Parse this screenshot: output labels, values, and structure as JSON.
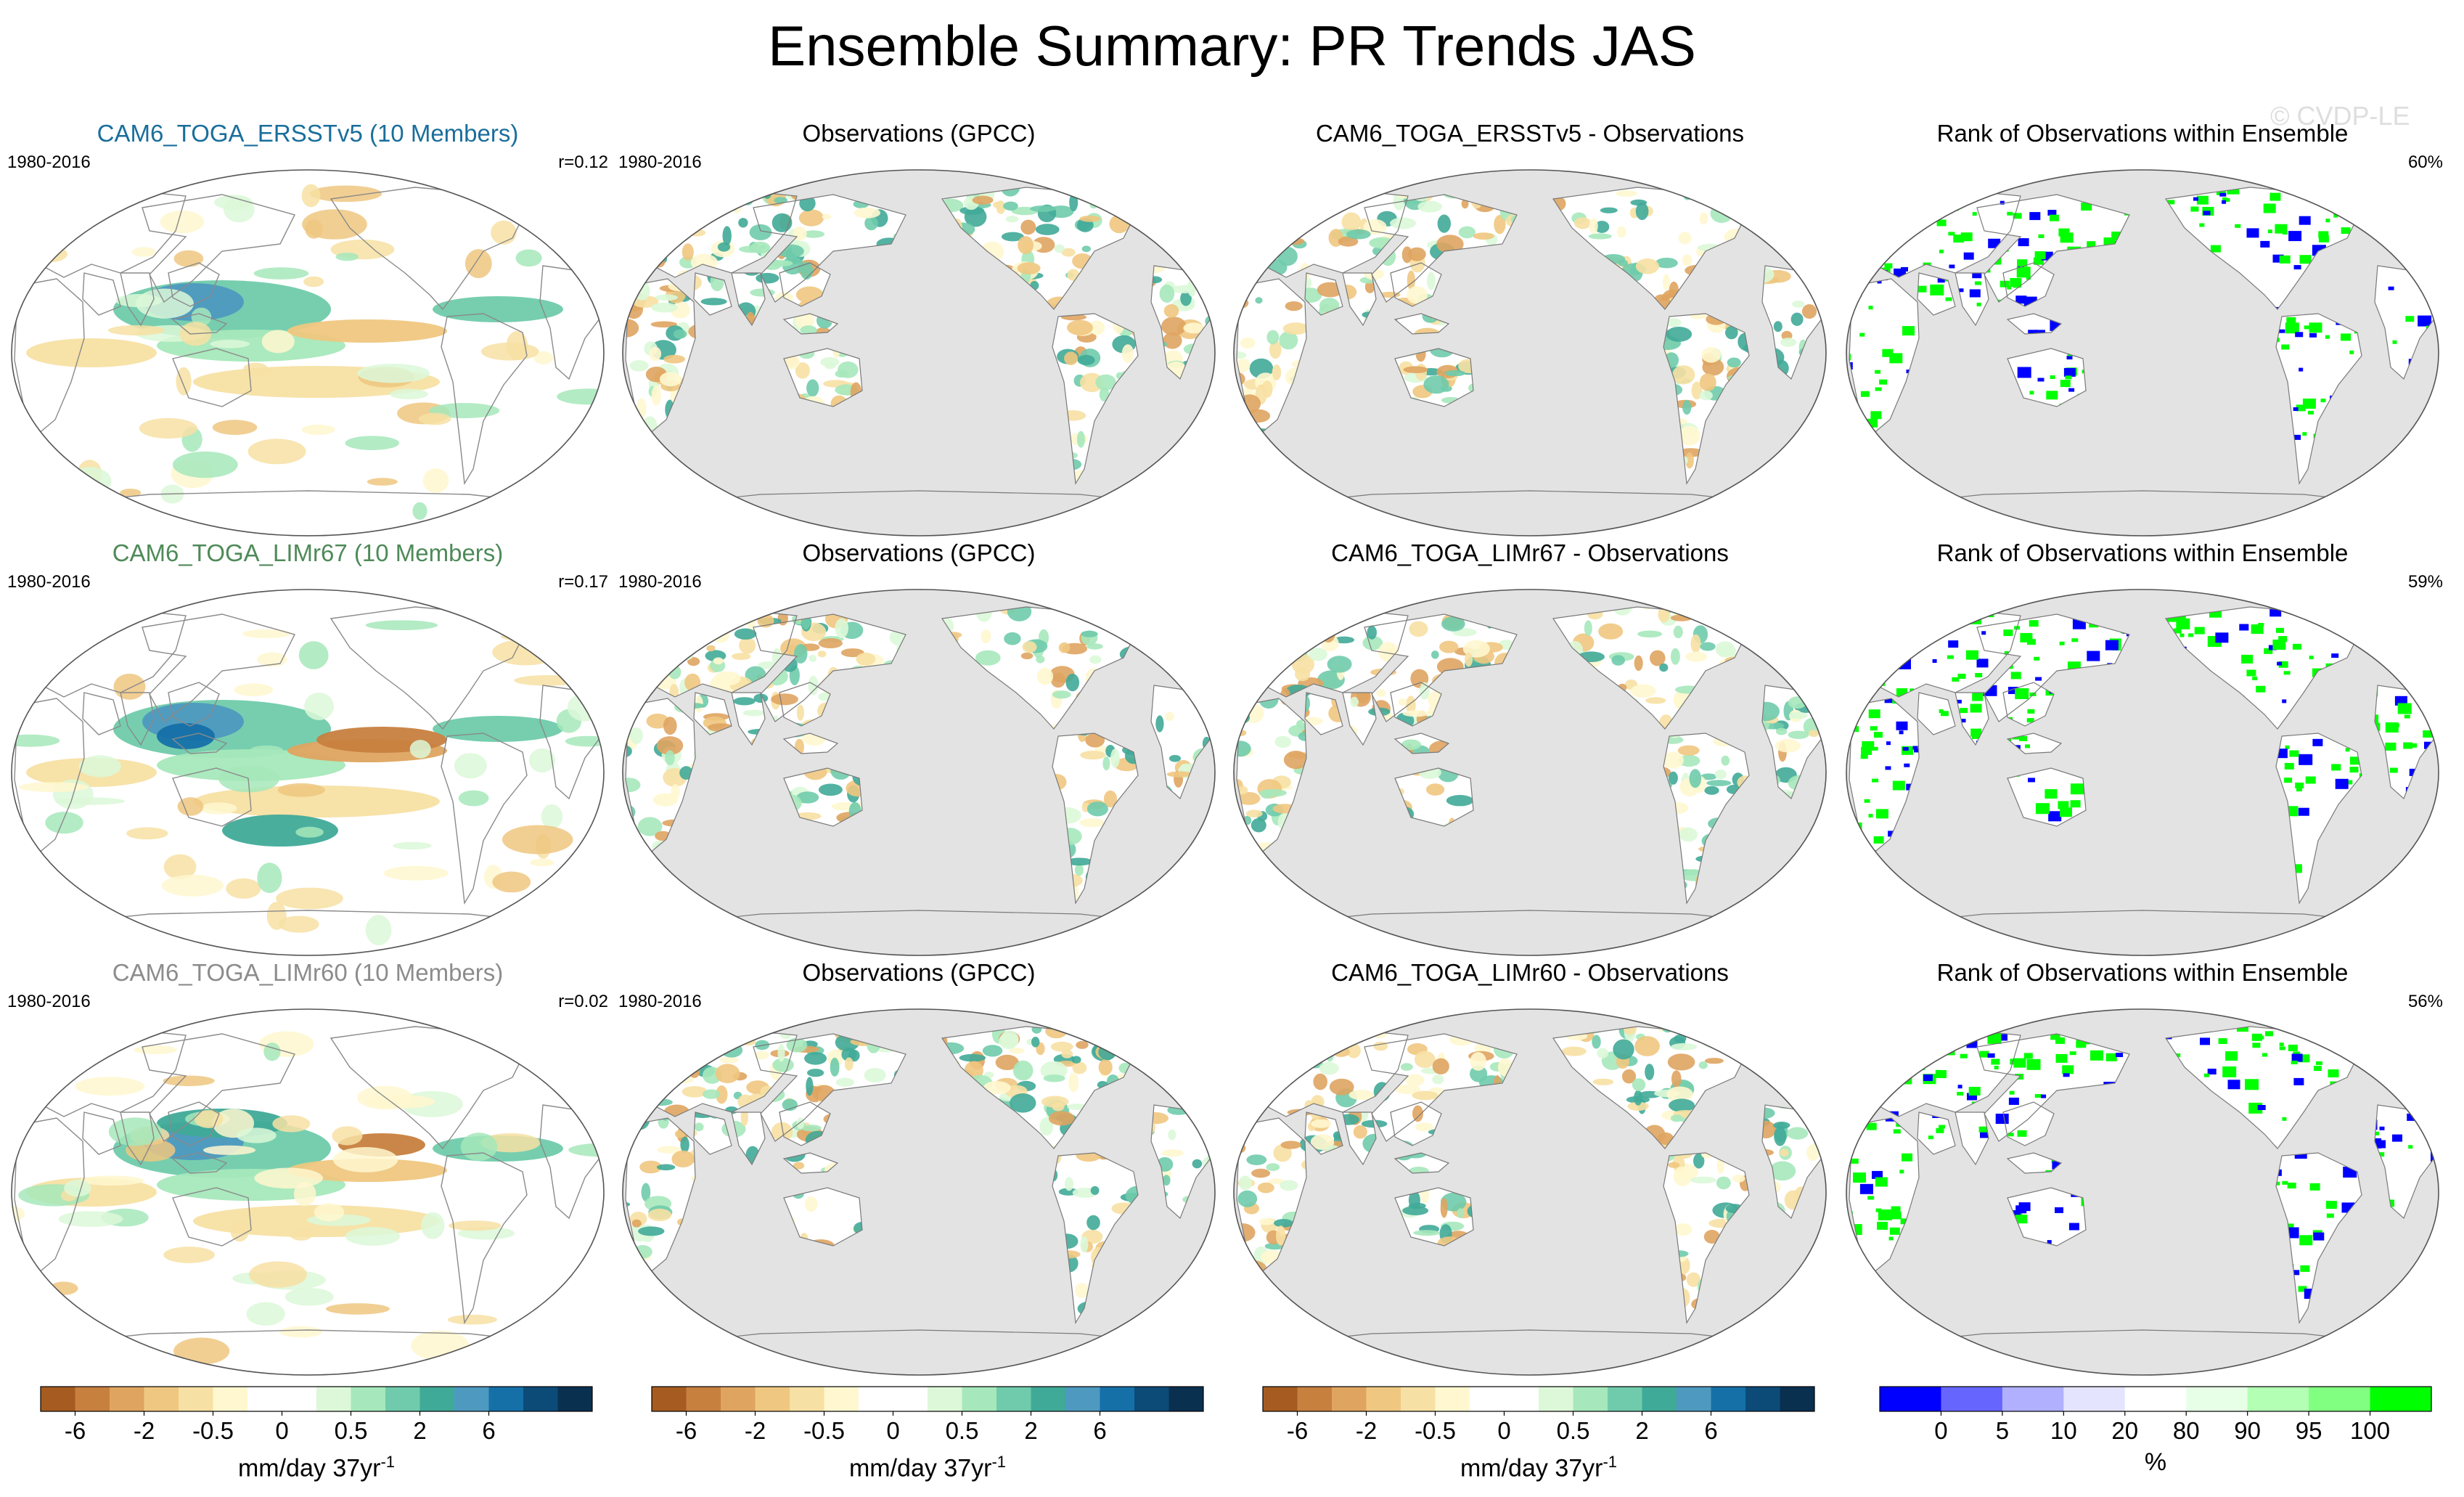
{
  "title": "Ensemble Summary: PR Trends JAS",
  "watermark": "© CVDP-LE",
  "colors": {
    "land_gray": "#e3e3e3",
    "rank_blue": "#0000ff",
    "rank_green": "#00ff00",
    "model_row1": "#1a6e9c",
    "model_row2": "#4e8a58",
    "model_row3": "#8c8c8c"
  },
  "rows": [
    {
      "model": {
        "title": "CAM6_TOGA_ERSSTv5 (10 Members)",
        "period": "1980-2016",
        "r": "r=0.12",
        "color": "#1a6e9c"
      },
      "obs": {
        "title": "Observations (GPCC)",
        "period": "1980-2016"
      },
      "diff": {
        "title": "CAM6_TOGA_ERSSTv5 - Observations"
      },
      "rank": {
        "title": "Rank of Observations within Ensemble",
        "pct": "60%"
      }
    },
    {
      "model": {
        "title": "CAM6_TOGA_LIMr67 (10 Members)",
        "period": "1980-2016",
        "r": "r=0.17",
        "color": "#4e8a58"
      },
      "obs": {
        "title": "Observations (GPCC)",
        "period": "1980-2016"
      },
      "diff": {
        "title": "CAM6_TOGA_LIMr67 - Observations"
      },
      "rank": {
        "title": "Rank of Observations within Ensemble",
        "pct": "59%"
      }
    },
    {
      "model": {
        "title": "CAM6_TOGA_LIMr60 (10 Members)",
        "period": "1980-2016",
        "r": "r=0.02",
        "color": "#8c8c8c"
      },
      "obs": {
        "title": "Observations (GPCC)",
        "period": "1980-2016"
      },
      "diff": {
        "title": "CAM6_TOGA_LIMr60 - Observations"
      },
      "rank": {
        "title": "Rank of Observations within Ensemble",
        "pct": "56%"
      }
    }
  ],
  "chart_data": [
    {
      "type": "colorbar",
      "name": "precip-trend",
      "unit": "mm/day 37yr",
      "unit_superscript": "-1",
      "colors": [
        "#a65c20",
        "#c7803e",
        "#dfa460",
        "#efc780",
        "#f7e0a3",
        "#fff7cf",
        "#ffffff",
        "#ffffff",
        "#dcf8d8",
        "#a6e8bb",
        "#6fcbab",
        "#40aa98",
        "#4e99c0",
        "#1570a8",
        "#0c4b78",
        "#0a3050"
      ],
      "ticks": [
        {
          "label": "-6",
          "boundary": 1
        },
        {
          "label": "-2",
          "boundary": 3
        },
        {
          "label": "-0.5",
          "boundary": 5
        },
        {
          "label": "0",
          "boundary": 7
        },
        {
          "label": "0.5",
          "boundary": 9
        },
        {
          "label": "2",
          "boundary": 11
        },
        {
          "label": "6",
          "boundary": 13
        }
      ]
    },
    {
      "type": "colorbar",
      "name": "rank-percent",
      "unit": "%",
      "colors": [
        "#0000ff",
        "#6666ff",
        "#b0b0ff",
        "#e4e4ff",
        "#ffffff",
        "#e6ffe6",
        "#b3ffb3",
        "#80ff80",
        "#00ff00"
      ],
      "ticks": [
        {
          "label": "0",
          "boundary": 1
        },
        {
          "label": "5",
          "boundary": 2
        },
        {
          "label": "10",
          "boundary": 3
        },
        {
          "label": "20",
          "boundary": 4
        },
        {
          "label": "80",
          "boundary": 5
        },
        {
          "label": "90",
          "boundary": 6
        },
        {
          "label": "95",
          "boundary": 7
        },
        {
          "label": "100",
          "boundary": 8
        }
      ]
    }
  ]
}
